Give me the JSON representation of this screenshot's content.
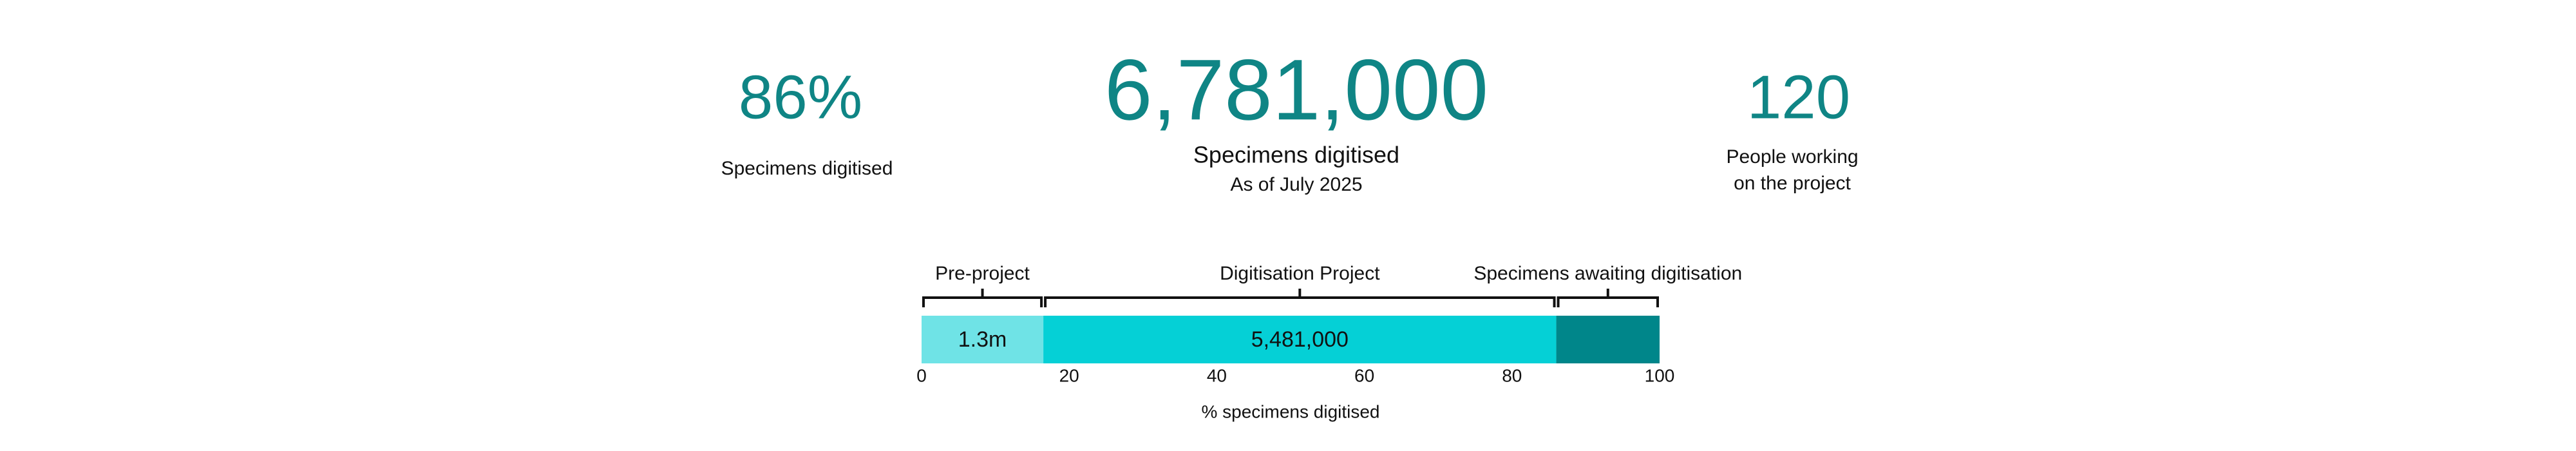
{
  "stats": [
    {
      "value": "86%",
      "label": [
        "Specimens digitised"
      ]
    },
    {
      "value": "6,781,000",
      "label": [
        "Specimens digitised"
      ],
      "note": "As of July 2025"
    },
    {
      "value": "120",
      "label": [
        "People working",
        "on the project"
      ]
    }
  ],
  "chart_data": {
    "type": "stacked-bar",
    "orientation": "horizontal",
    "series": [
      {
        "name": "Pre-project",
        "color": "#6fe3e6",
        "values": [
          16.5
        ],
        "value_labels": [
          "1.3m"
        ]
      },
      {
        "name": "Digitisation Project",
        "color": "#05d0d6",
        "values": [
          69.5
        ],
        "value_labels": [
          "5,481,000"
        ]
      },
      {
        "name": "Specimens awaiting digitisation",
        "color": "#00868a",
        "values": [
          14
        ]
      }
    ],
    "xlim": [
      0,
      100
    ],
    "xticks": [
      0,
      20,
      40,
      60,
      80,
      100
    ],
    "xlabel": "% specimens digitised"
  }
}
